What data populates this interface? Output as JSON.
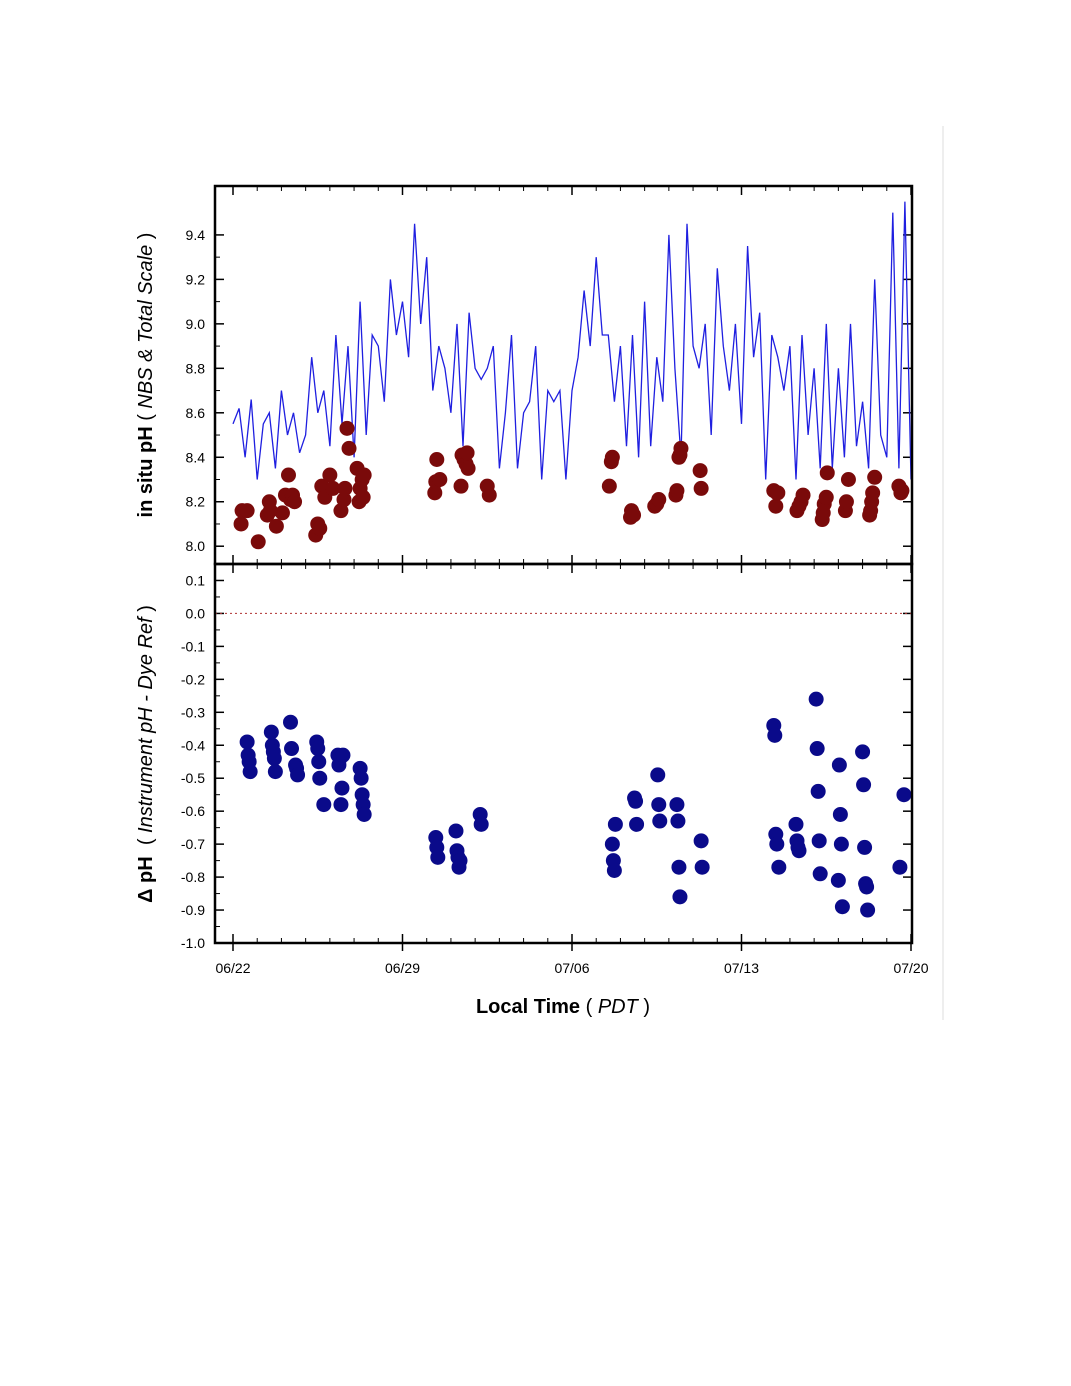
{
  "chart_data": [
    {
      "type": "scatter",
      "panel": "top",
      "ylabel_bold": "in situ pH",
      "ylabel_open": " ( ",
      "ylabel_italic": "NBS & Total Scale",
      "ylabel_close": " )",
      "xlim": [
        "2021-06-22",
        "2021-07-20"
      ],
      "ylim": [
        7.92,
        9.62
      ],
      "yticks": [
        8.0,
        8.2,
        8.4,
        8.6,
        8.8,
        9.0,
        9.2,
        9.4
      ],
      "ytick_labels": [
        "8.0",
        "8.2",
        "8.4",
        "8.6",
        "8.8",
        "9.0",
        "9.2",
        "9.4"
      ],
      "colors": {
        "line": "#1f1fe0",
        "points": "#7a0a0a"
      },
      "series": [
        {
          "kind": "line",
          "x": [
            "2021-06-22T00:00",
            "2021-06-22T06:00",
            "2021-06-22T12:00",
            "2021-06-22T18:00",
            "2021-06-23T00:00",
            "2021-06-23T06:00",
            "2021-06-23T12:00",
            "2021-06-23T18:00",
            "2021-06-24T00:00",
            "2021-06-24T06:00",
            "2021-06-24T12:00",
            "2021-06-24T18:00",
            "2021-06-25T00:00",
            "2021-06-25T06:00",
            "2021-06-25T12:00",
            "2021-06-25T18:00",
            "2021-06-26T00:00",
            "2021-06-26T06:00",
            "2021-06-26T12:00",
            "2021-06-26T18:00",
            "2021-06-27T00:00",
            "2021-06-27T06:00",
            "2021-06-27T12:00",
            "2021-06-27T18:00",
            "2021-06-28T00:00",
            "2021-06-28T06:00",
            "2021-06-28T12:00",
            "2021-06-28T18:00",
            "2021-06-29T00:00",
            "2021-06-29T06:00",
            "2021-06-29T12:00",
            "2021-06-29T18:00",
            "2021-06-30T00:00",
            "2021-06-30T06:00",
            "2021-06-30T12:00",
            "2021-06-30T18:00",
            "2021-07-01T00:00",
            "2021-07-01T06:00",
            "2021-07-01T12:00",
            "2021-07-01T18:00",
            "2021-07-02T00:00",
            "2021-07-02T06:00",
            "2021-07-02T12:00",
            "2021-07-02T18:00",
            "2021-07-03T00:00",
            "2021-07-03T06:00",
            "2021-07-03T12:00",
            "2021-07-03T18:00",
            "2021-07-04T00:00",
            "2021-07-04T06:00",
            "2021-07-04T12:00",
            "2021-07-04T18:00",
            "2021-07-05T00:00",
            "2021-07-05T06:00",
            "2021-07-05T12:00",
            "2021-07-05T18:00",
            "2021-07-06T00:00",
            "2021-07-06T06:00",
            "2021-07-06T12:00",
            "2021-07-06T18:00",
            "2021-07-07T00:00",
            "2021-07-07T06:00",
            "2021-07-07T12:00",
            "2021-07-07T18:00",
            "2021-07-08T00:00",
            "2021-07-08T06:00",
            "2021-07-08T12:00",
            "2021-07-08T18:00",
            "2021-07-09T00:00",
            "2021-07-09T06:00",
            "2021-07-09T12:00",
            "2021-07-09T18:00",
            "2021-07-10T00:00",
            "2021-07-10T06:00",
            "2021-07-10T12:00",
            "2021-07-10T18:00",
            "2021-07-11T00:00",
            "2021-07-11T06:00",
            "2021-07-11T12:00",
            "2021-07-11T18:00",
            "2021-07-12T00:00",
            "2021-07-12T06:00",
            "2021-07-12T12:00",
            "2021-07-12T18:00",
            "2021-07-13T00:00",
            "2021-07-13T06:00",
            "2021-07-13T12:00",
            "2021-07-13T18:00",
            "2021-07-14T00:00",
            "2021-07-14T06:00",
            "2021-07-14T12:00",
            "2021-07-14T18:00",
            "2021-07-15T00:00",
            "2021-07-15T06:00",
            "2021-07-15T12:00",
            "2021-07-15T18:00",
            "2021-07-16T00:00",
            "2021-07-16T06:00",
            "2021-07-16T12:00",
            "2021-07-16T18:00",
            "2021-07-17T00:00",
            "2021-07-17T06:00",
            "2021-07-17T12:00",
            "2021-07-17T18:00",
            "2021-07-18T00:00",
            "2021-07-18T06:00",
            "2021-07-18T12:00",
            "2021-07-18T18:00",
            "2021-07-19T00:00",
            "2021-07-19T06:00",
            "2021-07-19T12:00",
            "2021-07-19T18:00",
            "2021-07-20T00:00"
          ],
          "y": [
            8.55,
            8.62,
            8.4,
            8.66,
            8.3,
            8.55,
            8.6,
            8.35,
            8.7,
            8.5,
            8.6,
            8.42,
            8.5,
            8.85,
            8.6,
            8.7,
            8.45,
            8.95,
            8.55,
            8.9,
            8.4,
            9.1,
            8.5,
            8.95,
            8.9,
            8.65,
            9.2,
            8.95,
            9.1,
            8.85,
            9.45,
            9.0,
            9.3,
            8.7,
            8.9,
            8.8,
            8.6,
            9.0,
            8.45,
            9.05,
            8.8,
            8.75,
            8.8,
            8.9,
            8.35,
            8.6,
            8.95,
            8.35,
            8.6,
            8.65,
            8.9,
            8.3,
            8.7,
            8.65,
            8.7,
            8.3,
            8.7,
            8.85,
            9.15,
            8.9,
            9.3,
            8.95,
            8.95,
            8.65,
            8.9,
            8.45,
            8.95,
            8.4,
            9.1,
            8.45,
            8.85,
            8.65,
            9.4,
            8.8,
            8.4,
            9.45,
            8.9,
            8.8,
            9.0,
            8.5,
            9.25,
            8.9,
            8.7,
            9.0,
            8.55,
            9.35,
            8.85,
            9.05,
            8.3,
            8.95,
            8.85,
            8.7,
            8.9,
            8.3,
            8.95,
            8.5,
            8.8,
            8.35,
            9.0,
            8.35,
            8.8,
            8.4,
            9.0,
            8.45,
            8.65,
            8.35,
            9.2,
            8.5,
            8.4,
            9.5,
            8.35,
            9.55,
            8.3
          ]
        },
        {
          "kind": "points",
          "x": [
            "2021-06-22T08:00",
            "2021-06-22T09:00",
            "2021-06-22T14:00",
            "2021-06-23T01:00",
            "2021-06-23T10:00",
            "2021-06-23T12:00",
            "2021-06-23T13:00",
            "2021-06-23T19:00",
            "2021-06-24T01:00",
            "2021-06-24T04:00",
            "2021-06-24T07:00",
            "2021-06-24T09:00",
            "2021-06-24T11:00",
            "2021-06-24T13:00",
            "2021-06-25T10:00",
            "2021-06-25T12:00",
            "2021-06-25T14:00",
            "2021-06-25T16:00",
            "2021-06-25T19:00",
            "2021-06-26T00:00",
            "2021-06-26T03:00",
            "2021-06-26T11:00",
            "2021-06-26T14:00",
            "2021-06-26T15:00",
            "2021-06-26T17:00",
            "2021-06-26T19:00",
            "2021-06-27T03:00",
            "2021-06-27T05:00",
            "2021-06-27T06:00",
            "2021-06-27T08:00",
            "2021-06-27T09:00",
            "2021-06-27T10:00",
            "2021-06-30T08:00",
            "2021-06-30T09:00",
            "2021-06-30T10:00",
            "2021-06-30T13:00",
            "2021-07-01T10:00",
            "2021-07-01T11:00",
            "2021-07-01T13:00",
            "2021-07-01T15:00",
            "2021-07-01T16:00",
            "2021-07-01T17:00",
            "2021-07-02T12:00",
            "2021-07-02T14:00",
            "2021-07-07T13:00",
            "2021-07-07T15:00",
            "2021-07-07T16:00",
            "2021-07-08T10:00",
            "2021-07-08T11:00",
            "2021-07-08T13:00",
            "2021-07-09T10:00",
            "2021-07-09T12:00",
            "2021-07-09T14:00",
            "2021-07-10T07:00",
            "2021-07-10T08:00",
            "2021-07-10T10:00",
            "2021-07-10T11:00",
            "2021-07-10T12:00",
            "2021-07-11T07:00",
            "2021-07-11T08:00",
            "2021-07-14T08:00",
            "2021-07-14T10:00",
            "2021-07-14T11:00",
            "2021-07-14T12:00",
            "2021-07-15T07:00",
            "2021-07-15T09:00",
            "2021-07-15T11:00",
            "2021-07-15T13:00",
            "2021-07-16T08:00",
            "2021-07-16T09:00",
            "2021-07-16T10:00",
            "2021-07-16T12:00",
            "2021-07-16T13:00",
            "2021-07-17T07:00",
            "2021-07-17T08:00",
            "2021-07-17T10:00",
            "2021-07-18T07:00",
            "2021-07-18T08:00",
            "2021-07-18T09:00",
            "2021-07-18T10:00",
            "2021-07-18T12:00",
            "2021-07-19T12:00",
            "2021-07-19T14:00",
            "2021-07-19T15:00"
          ],
          "y": [
            8.1,
            8.16,
            8.16,
            8.02,
            8.14,
            8.2,
            8.16,
            8.09,
            8.15,
            8.23,
            8.32,
            8.21,
            8.23,
            8.2,
            8.05,
            8.1,
            8.08,
            8.27,
            8.22,
            8.32,
            8.26,
            8.16,
            8.21,
            8.26,
            8.53,
            8.44,
            8.35,
            8.2,
            8.26,
            8.3,
            8.22,
            8.32,
            8.24,
            8.29,
            8.39,
            8.3,
            8.27,
            8.41,
            8.39,
            8.37,
            8.42,
            8.35,
            8.27,
            8.23,
            8.27,
            8.38,
            8.4,
            8.13,
            8.16,
            8.14,
            8.18,
            8.19,
            8.21,
            8.23,
            8.25,
            8.4,
            8.41,
            8.44,
            8.34,
            8.26,
            8.25,
            8.18,
            8.24,
            8.24,
            8.16,
            8.18,
            8.2,
            8.23,
            8.12,
            8.15,
            8.19,
            8.22,
            8.33,
            8.16,
            8.2,
            8.3,
            8.14,
            8.16,
            8.2,
            8.24,
            8.31,
            8.27,
            8.24,
            8.25
          ]
        }
      ]
    },
    {
      "type": "scatter",
      "panel": "bottom",
      "ylabel_bold": "Δ pH",
      "ylabel_open": "  ( ",
      "ylabel_italic": "Instrument pH - Dye Ref",
      "ylabel_close": " )",
      "xlabel_bold": "Local Time",
      "xlabel_open": " ( ",
      "xlabel_italic": "PDT",
      "xlabel_close": " )",
      "xlim": [
        "2021-06-22",
        "2021-07-20"
      ],
      "ylim": [
        -1.0,
        0.15
      ],
      "yticks": [
        0.1,
        0.0,
        -0.1,
        -0.2,
        -0.3,
        -0.4,
        -0.5,
        -0.6,
        -0.7,
        -0.8,
        -0.9,
        -1.0
      ],
      "ytick_labels": [
        "0.1",
        "0.0",
        "-0.1",
        "-0.2",
        "-0.3",
        "-0.4",
        "-0.5",
        "-0.6",
        "-0.7",
        "-0.8",
        "-0.9",
        "-1.0"
      ],
      "xticks": [
        "2021-06-22",
        "2021-06-29",
        "2021-07-06",
        "2021-07-13",
        "2021-07-20"
      ],
      "xtick_labels": [
        "06/22",
        "06/29",
        "07/06",
        "07/13",
        "07/20"
      ],
      "reference_line": 0.0,
      "colors": {
        "points": "#0a0a8a",
        "reference_line": "#b03030"
      },
      "series": [
        {
          "kind": "points",
          "x": [
            "2021-06-22T14:00",
            "2021-06-22T15:00",
            "2021-06-22T16:00",
            "2021-06-22T17:00",
            "2021-06-23T14:00",
            "2021-06-23T15:00",
            "2021-06-23T16:00",
            "2021-06-23T17:00",
            "2021-06-23T18:00",
            "2021-06-24T09:00",
            "2021-06-24T10:00",
            "2021-06-24T14:00",
            "2021-06-24T15:00",
            "2021-06-24T16:00",
            "2021-06-25T11:00",
            "2021-06-25T12:00",
            "2021-06-25T13:00",
            "2021-06-25T14:00",
            "2021-06-25T18:00",
            "2021-06-26T08:00",
            "2021-06-26T09:00",
            "2021-06-26T10:00",
            "2021-06-26T11:00",
            "2021-06-26T12:00",
            "2021-06-26T13:00",
            "2021-06-27T06:00",
            "2021-06-27T07:00",
            "2021-06-27T08:00",
            "2021-06-27T09:00",
            "2021-06-27T10:00",
            "2021-06-30T09:00",
            "2021-06-30T10:00",
            "2021-06-30T11:00",
            "2021-07-01T05:00",
            "2021-07-01T06:00",
            "2021-07-01T07:00",
            "2021-07-01T08:00",
            "2021-07-01T09:00",
            "2021-07-02T05:00",
            "2021-07-02T06:00",
            "2021-07-07T16:00",
            "2021-07-07T17:00",
            "2021-07-07T18:00",
            "2021-07-07T19:00",
            "2021-07-08T14:00",
            "2021-07-08T15:00",
            "2021-07-08T16:00",
            "2021-07-09T13:00",
            "2021-07-09T14:00",
            "2021-07-09T15:00",
            "2021-07-10T08:00",
            "2021-07-10T09:00",
            "2021-07-10T10:00",
            "2021-07-10T11:00",
            "2021-07-11T08:00",
            "2021-07-11T09:00",
            "2021-07-14T08:00",
            "2021-07-14T09:00",
            "2021-07-14T10:00",
            "2021-07-14T11:00",
            "2021-07-14T13:00",
            "2021-07-15T06:00",
            "2021-07-15T07:00",
            "2021-07-15T08:00",
            "2021-07-15T09:00",
            "2021-07-16T02:00",
            "2021-07-16T03:00",
            "2021-07-16T04:00",
            "2021-07-16T05:00",
            "2021-07-16T06:00",
            "2021-07-17T00:00",
            "2021-07-17T01:00",
            "2021-07-17T02:00",
            "2021-07-17T03:00",
            "2021-07-17T04:00",
            "2021-07-18T00:00",
            "2021-07-18T01:00",
            "2021-07-18T02:00",
            "2021-07-18T03:00",
            "2021-07-18T04:00",
            "2021-07-18T05:00",
            "2021-07-19T13:00",
            "2021-07-19T17:00"
          ],
          "y": [
            -0.39,
            -0.43,
            -0.45,
            -0.48,
            -0.36,
            -0.4,
            -0.42,
            -0.44,
            -0.48,
            -0.33,
            -0.41,
            -0.46,
            -0.47,
            -0.49,
            -0.39,
            -0.41,
            -0.45,
            -0.5,
            -0.58,
            -0.43,
            -0.46,
            -0.44,
            -0.58,
            -0.53,
            -0.43,
            -0.47,
            -0.5,
            -0.55,
            -0.58,
            -0.61,
            -0.68,
            -0.71,
            -0.74,
            -0.66,
            -0.72,
            -0.74,
            -0.77,
            -0.75,
            -0.61,
            -0.64,
            -0.7,
            -0.75,
            -0.78,
            -0.64,
            -0.56,
            -0.57,
            -0.64,
            -0.49,
            -0.58,
            -0.63,
            -0.58,
            -0.63,
            -0.77,
            -0.86,
            -0.69,
            -0.77,
            -0.34,
            -0.37,
            -0.67,
            -0.7,
            -0.77,
            -0.64,
            -0.69,
            -0.71,
            -0.72,
            -0.26,
            -0.41,
            -0.54,
            -0.69,
            -0.79,
            -0.81,
            -0.46,
            -0.61,
            -0.7,
            -0.89,
            -0.42,
            -0.52,
            -0.71,
            -0.82,
            -0.83,
            -0.9,
            -0.77,
            -0.55
          ]
        }
      ]
    }
  ]
}
